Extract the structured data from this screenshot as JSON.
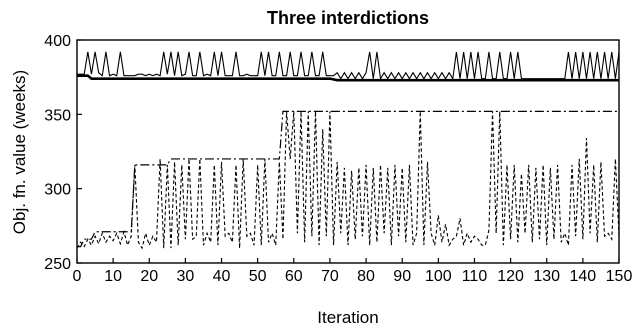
{
  "chart_data": {
    "type": "line",
    "title": "Three interdictions",
    "xlabel": "Iteration",
    "ylabel": "Obj. fn. value (weeks)",
    "xlim": [
      0,
      150
    ],
    "ylim": [
      250,
      400
    ],
    "xticks": [
      0,
      10,
      20,
      30,
      40,
      50,
      60,
      70,
      80,
      90,
      100,
      110,
      120,
      130,
      140,
      150
    ],
    "yticks": [
      250,
      300,
      350,
      400
    ],
    "grid": false,
    "legend": "none",
    "series": [
      {
        "style": "solid-thin",
        "color": "#000000",
        "x": [
          0,
          1,
          2,
          3,
          4,
          5,
          6,
          7,
          8,
          9,
          10,
          11,
          12,
          13,
          14,
          15,
          16,
          17,
          18,
          19,
          20,
          21,
          22,
          23,
          24,
          25,
          26,
          27,
          28,
          29,
          30,
          31,
          32,
          33,
          34,
          35,
          36,
          37,
          38,
          39,
          40,
          41,
          42,
          43,
          44,
          45,
          46,
          47,
          48,
          49,
          50,
          51,
          52,
          53,
          54,
          55,
          56,
          57,
          58,
          59,
          60,
          61,
          62,
          63,
          64,
          65,
          66,
          67,
          68,
          69,
          70,
          71,
          72,
          73,
          74,
          75,
          76,
          77,
          78,
          79,
          80,
          81,
          82,
          83,
          84,
          85,
          86,
          87,
          88,
          89,
          90,
          91,
          92,
          93,
          94,
          95,
          96,
          97,
          98,
          99,
          100,
          101,
          102,
          103,
          104,
          105,
          106,
          107,
          108,
          109,
          110,
          111,
          112,
          113,
          114,
          115,
          116,
          117,
          118,
          119,
          120,
          121,
          122,
          123,
          124,
          125,
          126,
          127,
          128,
          129,
          130,
          131,
          132,
          133,
          134,
          135,
          136,
          137,
          138,
          139,
          140,
          141,
          142,
          143,
          144,
          145,
          146,
          147,
          148,
          149,
          150
        ],
        "y": [
          377,
          377,
          377,
          392,
          377,
          392,
          378,
          376,
          392,
          376,
          377,
          376,
          392,
          376,
          376,
          376,
          376,
          377,
          377,
          376,
          377,
          376,
          377,
          376,
          392,
          377,
          392,
          376,
          392,
          376,
          377,
          392,
          376,
          376,
          392,
          376,
          377,
          376,
          392,
          376,
          392,
          376,
          376,
          376,
          392,
          376,
          376,
          377,
          376,
          376,
          376,
          392,
          376,
          392,
          376,
          376,
          392,
          376,
          376,
          392,
          376,
          376,
          392,
          376,
          376,
          392,
          376,
          376,
          392,
          376,
          376,
          376,
          378,
          374,
          378,
          374,
          378,
          374,
          378,
          374,
          378,
          392,
          374,
          392,
          374,
          378,
          374,
          378,
          374,
          378,
          374,
          378,
          374,
          378,
          374,
          378,
          374,
          378,
          374,
          378,
          374,
          378,
          374,
          378,
          374,
          392,
          374,
          392,
          374,
          392,
          374,
          392,
          374,
          374,
          392,
          374,
          374,
          392,
          374,
          374,
          392,
          374,
          392,
          374,
          374,
          374,
          374,
          374,
          374,
          374,
          374,
          374,
          374,
          374,
          374,
          374,
          392,
          374,
          392,
          374,
          392,
          374,
          392,
          374,
          392,
          374,
          392,
          374,
          392,
          374,
          392
        ]
      },
      {
        "style": "solid-thick",
        "color": "#000000",
        "x": [
          0,
          3,
          4,
          70,
          72,
          150
        ],
        "y": [
          376,
          376,
          374,
          374,
          373,
          373
        ]
      },
      {
        "style": "dash-dot",
        "color": "#000000",
        "x": [
          0,
          1,
          2,
          4,
          5,
          15,
          16,
          25,
          26,
          56,
          57,
          73,
          150
        ],
        "y": [
          261,
          261,
          266,
          266,
          271,
          271,
          316,
          316,
          320,
          320,
          352,
          352,
          352
        ]
      },
      {
        "style": "dashed",
        "color": "#000000",
        "x": [
          0,
          1,
          2,
          3,
          4,
          5,
          6,
          7,
          8,
          9,
          10,
          11,
          12,
          13,
          14,
          15,
          16,
          17,
          18,
          19,
          20,
          21,
          22,
          23,
          24,
          25,
          26,
          27,
          28,
          29,
          30,
          31,
          32,
          33,
          34,
          35,
          36,
          37,
          38,
          39,
          40,
          41,
          42,
          43,
          44,
          45,
          46,
          47,
          48,
          49,
          50,
          51,
          52,
          53,
          54,
          55,
          56,
          57,
          58,
          59,
          60,
          61,
          62,
          63,
          64,
          65,
          66,
          67,
          68,
          69,
          70,
          71,
          72,
          73,
          74,
          75,
          76,
          77,
          78,
          79,
          80,
          81,
          82,
          83,
          84,
          85,
          86,
          87,
          88,
          89,
          90,
          91,
          92,
          93,
          94,
          95,
          96,
          97,
          98,
          99,
          100,
          101,
          102,
          103,
          104,
          105,
          106,
          107,
          108,
          109,
          110,
          111,
          112,
          113,
          114,
          115,
          116,
          117,
          118,
          119,
          120,
          121,
          122,
          123,
          124,
          125,
          126,
          127,
          128,
          129,
          130,
          131,
          132,
          133,
          134,
          135,
          136,
          137,
          138,
          139,
          140,
          141,
          142,
          143,
          144,
          145,
          146,
          147,
          148,
          149,
          150
        ],
        "y": [
          260,
          264,
          261,
          266,
          262,
          268,
          263,
          270,
          264,
          268,
          265,
          270,
          263,
          271,
          262,
          268,
          316,
          264,
          260,
          270,
          262,
          268,
          264,
          320,
          260,
          316,
          260,
          318,
          262,
          316,
          266,
          320,
          266,
          268,
          320,
          262,
          270,
          264,
          316,
          262,
          318,
          268,
          270,
          264,
          316,
          260,
          320,
          268,
          270,
          262,
          316,
          262,
          320,
          264,
          270,
          262,
          318,
          266,
          352,
          320,
          352,
          270,
          352,
          264,
          352,
          268,
          352,
          262,
          340,
          268,
          352,
          262,
          318,
          270,
          314,
          262,
          312,
          266,
          314,
          268,
          316,
          262,
          314,
          264,
          316,
          270,
          314,
          262,
          316,
          268,
          314,
          264,
          316,
          262,
          270,
          352,
          262,
          318,
          270,
          262,
          282,
          264,
          276,
          262,
          266,
          268,
          280,
          262,
          270,
          264,
          268,
          266,
          262,
          262,
          272,
          352,
          270,
          352,
          262,
          316,
          266,
          316,
          264,
          310,
          270,
          316,
          264,
          314,
          266,
          316,
          262,
          314,
          266,
          316,
          264,
          270,
          262,
          316,
          268,
          320,
          266,
          334,
          270,
          316,
          264,
          318,
          268,
          270,
          266,
          320,
          268
        ]
      }
    ]
  }
}
